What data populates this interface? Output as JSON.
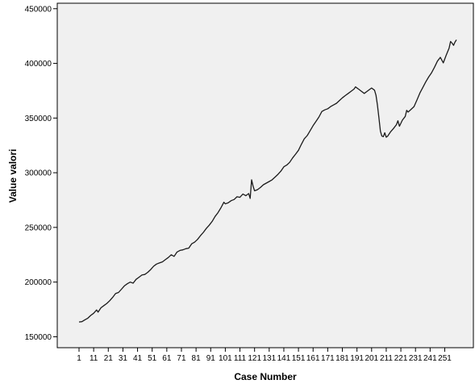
{
  "chart_data": {
    "type": "line",
    "xlabel": "Case Number",
    "ylabel": "Value valori",
    "xlim": [
      1,
      259
    ],
    "ylim": [
      140000,
      455000
    ],
    "x_ticks": [
      1,
      11,
      21,
      31,
      41,
      51,
      61,
      71,
      81,
      91,
      101,
      111,
      121,
      131,
      141,
      151,
      161,
      171,
      181,
      191,
      201,
      211,
      221,
      231,
      241,
      251
    ],
    "y_ticks": [
      150000,
      200000,
      250000,
      300000,
      350000,
      400000,
      450000
    ],
    "y_tick_labels": [
      "150000",
      "200000",
      "250000",
      "300000",
      "350000",
      "400000",
      "450000"
    ],
    "grid": false,
    "plot_background": "#f0f0f0",
    "line_color": "#1a1a1a",
    "series": [
      {
        "points": [
          [
            1,
            163500
          ],
          [
            3,
            163800
          ],
          [
            5,
            165500
          ],
          [
            7,
            167000
          ],
          [
            9,
            169500
          ],
          [
            11,
            171500
          ],
          [
            13,
            174500
          ],
          [
            14,
            172500
          ],
          [
            16,
            176500
          ],
          [
            18,
            178500
          ],
          [
            20,
            180500
          ],
          [
            22,
            183000
          ],
          [
            24,
            186000
          ],
          [
            26,
            189500
          ],
          [
            28,
            190500
          ],
          [
            30,
            193500
          ],
          [
            32,
            196500
          ],
          [
            34,
            198500
          ],
          [
            36,
            200000
          ],
          [
            38,
            199000
          ],
          [
            40,
            202500
          ],
          [
            42,
            204500
          ],
          [
            44,
            206500
          ],
          [
            46,
            207000
          ],
          [
            48,
            209000
          ],
          [
            50,
            211500
          ],
          [
            52,
            214500
          ],
          [
            54,
            216500
          ],
          [
            56,
            217500
          ],
          [
            58,
            218500
          ],
          [
            60,
            220500
          ],
          [
            62,
            222500
          ],
          [
            64,
            225000
          ],
          [
            66,
            223500
          ],
          [
            68,
            227500
          ],
          [
            70,
            229000
          ],
          [
            72,
            229500
          ],
          [
            74,
            230500
          ],
          [
            76,
            231000
          ],
          [
            78,
            235000
          ],
          [
            80,
            236500
          ],
          [
            82,
            239000
          ],
          [
            84,
            242500
          ],
          [
            86,
            245500
          ],
          [
            88,
            249000
          ],
          [
            90,
            252000
          ],
          [
            92,
            255500
          ],
          [
            94,
            260000
          ],
          [
            96,
            263500
          ],
          [
            98,
            268000
          ],
          [
            100,
            273000
          ],
          [
            101,
            271500
          ],
          [
            103,
            272500
          ],
          [
            105,
            274500
          ],
          [
            107,
            275500
          ],
          [
            109,
            278000
          ],
          [
            111,
            277500
          ],
          [
            113,
            280500
          ],
          [
            115,
            279000
          ],
          [
            117,
            281000
          ],
          [
            118,
            276500
          ],
          [
            119,
            293500
          ],
          [
            120,
            287500
          ],
          [
            121,
            283500
          ],
          [
            123,
            284500
          ],
          [
            125,
            286500
          ],
          [
            127,
            289000
          ],
          [
            129,
            290500
          ],
          [
            131,
            292000
          ],
          [
            133,
            293500
          ],
          [
            135,
            296000
          ],
          [
            137,
            298500
          ],
          [
            139,
            301500
          ],
          [
            141,
            305500
          ],
          [
            143,
            307000
          ],
          [
            145,
            309500
          ],
          [
            147,
            313500
          ],
          [
            149,
            317000
          ],
          [
            151,
            320500
          ],
          [
            153,
            326000
          ],
          [
            155,
            331000
          ],
          [
            157,
            334000
          ],
          [
            159,
            338500
          ],
          [
            161,
            343000
          ],
          [
            163,
            347000
          ],
          [
            165,
            351000
          ],
          [
            167,
            356000
          ],
          [
            169,
            357500
          ],
          [
            171,
            358500
          ],
          [
            173,
            360500
          ],
          [
            175,
            362000
          ],
          [
            177,
            363500
          ],
          [
            179,
            366000
          ],
          [
            181,
            368500
          ],
          [
            183,
            370500
          ],
          [
            185,
            372500
          ],
          [
            187,
            374500
          ],
          [
            189,
            376500
          ],
          [
            190,
            378500
          ],
          [
            192,
            376500
          ],
          [
            194,
            374500
          ],
          [
            196,
            372500
          ],
          [
            198,
            374500
          ],
          [
            200,
            376500
          ],
          [
            201,
            377500
          ],
          [
            203,
            375500
          ],
          [
            204,
            371000
          ],
          [
            205,
            362000
          ],
          [
            206,
            350000
          ],
          [
            207,
            338000
          ],
          [
            208,
            333500
          ],
          [
            209,
            333000
          ],
          [
            210,
            336500
          ],
          [
            211,
            332500
          ],
          [
            212,
            333500
          ],
          [
            214,
            337500
          ],
          [
            216,
            340500
          ],
          [
            218,
            344000
          ],
          [
            219,
            347500
          ],
          [
            220,
            342500
          ],
          [
            222,
            348000
          ],
          [
            224,
            351500
          ],
          [
            225,
            357000
          ],
          [
            226,
            355500
          ],
          [
            228,
            358000
          ],
          [
            230,
            360500
          ],
          [
            232,
            366500
          ],
          [
            234,
            373000
          ],
          [
            236,
            378000
          ],
          [
            238,
            383000
          ],
          [
            240,
            387500
          ],
          [
            242,
            391500
          ],
          [
            244,
            396500
          ],
          [
            246,
            402000
          ],
          [
            248,
            405500
          ],
          [
            250,
            400500
          ],
          [
            252,
            407500
          ],
          [
            254,
            414000
          ],
          [
            255,
            420000
          ],
          [
            256,
            418500
          ],
          [
            257,
            416500
          ],
          [
            258,
            419500
          ],
          [
            259,
            421500
          ]
        ]
      }
    ]
  }
}
